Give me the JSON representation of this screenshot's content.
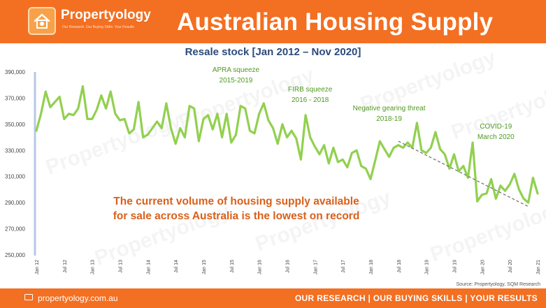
{
  "header": {
    "brand": "Propertyology",
    "tagline": "Our Research. Our Buying Skills. Your Results",
    "title": "Australian Housing Supply"
  },
  "footer": {
    "url": "propertyology.com.au",
    "tagline": "OUR RESEARCH | OUR BUYING SKILLS | YOUR RESULTS",
    "source": "Source: Propertyology, SQM Research"
  },
  "colors": {
    "brand_orange": "#f36f21",
    "line": "#92d050",
    "annotation_green": "#4e9a1f",
    "callout_orange": "#d9601a",
    "subtitle_navy": "#2c4a7a"
  },
  "chart_data": {
    "type": "line",
    "title": "Resale stock [Jan 2012 – Nov 2020]",
    "xlabel": "",
    "ylabel": "",
    "ylim": [
      250000,
      390000
    ],
    "yticks": [
      "390,000",
      "370,000",
      "350,000",
      "330,000",
      "310,000",
      "290,000",
      "270,000",
      "250,000"
    ],
    "ytick_values": [
      390000,
      370000,
      350000,
      330000,
      310000,
      290000,
      270000,
      250000
    ],
    "xticks": [
      "Jan 12",
      "Jul 12",
      "Jan 13",
      "Jul 13",
      "Jan 14",
      "Jul 14",
      "Jan 15",
      "Jul 15",
      "Jan 16",
      "Jul 16",
      "Jan 17",
      "Jul 17",
      "Jan 18",
      "Jul 18",
      "Jan 19",
      "Jul 19",
      "Jan 20",
      "Jul 20",
      "Jan 21"
    ],
    "grid": false,
    "legend": "none",
    "series": [
      {
        "x_start": "2012-01",
        "x_end": "2020-11",
        "values": [
          345000,
          358000,
          375000,
          363000,
          367000,
          371000,
          354000,
          358000,
          357000,
          362000,
          379000,
          354000,
          354000,
          361000,
          372000,
          362000,
          375000,
          358000,
          353000,
          354000,
          343000,
          346000,
          367000,
          340000,
          342000,
          347000,
          352000,
          347000,
          366000,
          347000,
          335000,
          347000,
          340000,
          364000,
          362000,
          337000,
          354000,
          357000,
          346000,
          358000,
          340000,
          358000,
          336000,
          342000,
          364000,
          362000,
          345000,
          343000,
          358000,
          366000,
          353000,
          347000,
          335000,
          350000,
          340000,
          345000,
          339000,
          323000,
          357000,
          340000,
          333000,
          327000,
          334000,
          320000,
          332000,
          321000,
          323000,
          317000,
          328000,
          330000,
          318000,
          316000,
          308000,
          322000,
          337000,
          331000,
          325000,
          332000,
          334000,
          332000,
          336000,
          332000,
          351000,
          330000,
          328000,
          332000,
          344000,
          331000,
          327000,
          316000,
          327000,
          314000,
          318000,
          309000,
          336000,
          291000,
          296000,
          297000,
          308000,
          293000,
          303000,
          299000,
          304000,
          312000,
          300000,
          293000,
          290000,
          309000,
          297000
        ]
      }
    ],
    "trendline": {
      "from": [
        "2018-07",
        337000
      ],
      "to": [
        "2020-11",
        287000
      ]
    },
    "annotations": [
      {
        "title": "APRA squeeze",
        "subtitle": "2015-2019",
        "x": "2015-08"
      },
      {
        "title": "FIRB squeeze",
        "subtitle": "2016 - 2018",
        "x": "2016-12"
      },
      {
        "title": "Negative gearing threat",
        "subtitle": "2018-19",
        "x": "2018-05"
      },
      {
        "title": "COVID-19",
        "subtitle": "March 2020",
        "x": "2020-04"
      }
    ],
    "callout": [
      "The current volume of housing supply available",
      "for sale across Australia is the lowest on record"
    ],
    "watermark": "Propertyology"
  }
}
